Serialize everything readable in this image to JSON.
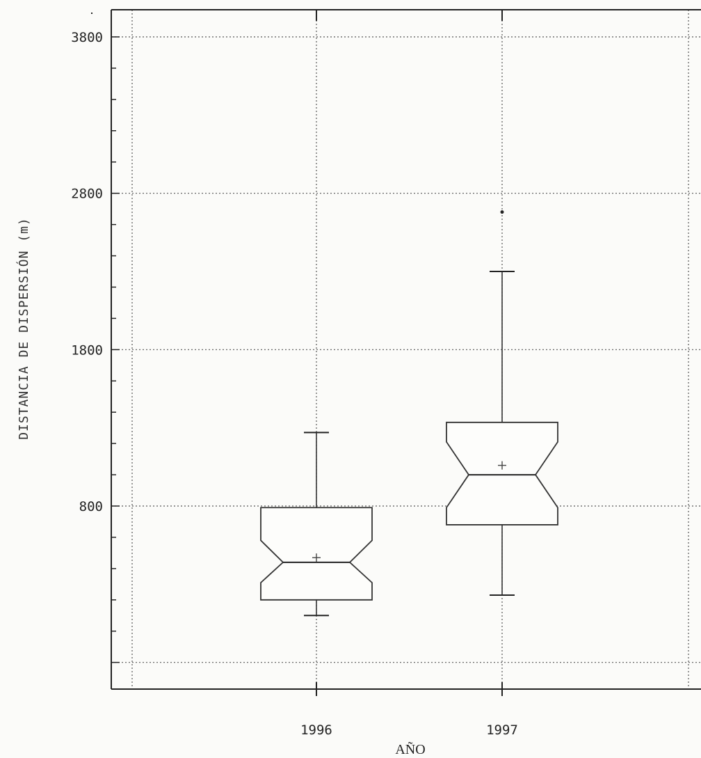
{
  "chart_data": {
    "type": "boxplot",
    "notched": true,
    "xlabel": "AÑO",
    "ylabel": "DISTANCIA DE DISPERSIÓN (m)",
    "categories": [
      "1996",
      "1997"
    ],
    "y_ticks": [
      3800,
      2800,
      1800,
      800
    ],
    "ylim": [
      -150,
      4000
    ],
    "grid": true,
    "boxes": [
      {
        "name": "1996",
        "whisker_low": 100,
        "q1": 200,
        "notch_low": 310,
        "median": 440,
        "notch_high": 580,
        "q3": 790,
        "whisker_high": 1270,
        "mean": 470,
        "outliers": []
      },
      {
        "name": "1997",
        "whisker_low": 230,
        "q1": 680,
        "notch_low": 790,
        "median": 1000,
        "notch_high": 1210,
        "q3": 1335,
        "whisker_high": 2300,
        "mean": 1060,
        "outliers": [
          2680
        ]
      }
    ]
  }
}
